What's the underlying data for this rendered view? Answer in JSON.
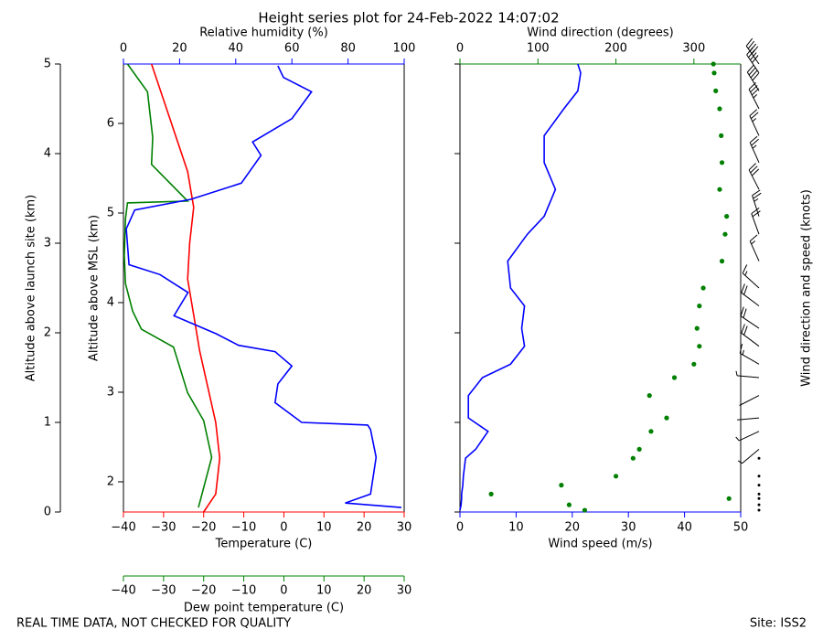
{
  "chart_data": [
    {
      "type": "line",
      "title": "Height series plot for 24-Feb-2022 14:07:02",
      "y_label": "Altitude above launch site (km)",
      "ylim": [
        0,
        5
      ],
      "yticks": [
        0,
        1,
        2,
        3,
        4,
        5
      ],
      "y2_label": "Altitude above MSL (km)",
      "y2lim": [
        1.663,
        6.663
      ],
      "y2ticks": [
        2,
        3,
        4,
        5,
        6
      ],
      "x_label": "Temperature (C)",
      "x_color": "red",
      "xlim": [
        -40,
        30
      ],
      "xticks": [
        {
          "value": -40,
          "label": "−40"
        },
        {
          "value": -30,
          "label": "−30"
        },
        {
          "value": -20,
          "label": "−20"
        },
        {
          "value": -10,
          "label": "−10"
        },
        0,
        10,
        20,
        30
      ],
      "x2_label": "Relative humidity (%)",
      "x2_color": "blue",
      "x2lim": [
        0,
        100
      ],
      "x2ticks": [
        0,
        20,
        40,
        60,
        80,
        100
      ],
      "x3_label": "Dew point temperature (C)",
      "x3_color": "green",
      "x3lim": [
        -40,
        30
      ],
      "x3ticks": [
        {
          "value": -40,
          "label": "−40"
        },
        {
          "value": -30,
          "label": "−30"
        },
        {
          "value": -20,
          "label": "−20"
        },
        {
          "value": -10,
          "label": "−10"
        },
        0,
        10,
        20,
        30
      ],
      "series": [
        {
          "axis": "x",
          "color": "red",
          "style": "line",
          "altitude": [
            0,
            0.2,
            0.6,
            1.0,
            1.4,
            1.8,
            2.2,
            2.6,
            3.0,
            3.4,
            3.8,
            4.2,
            4.6,
            5.0
          ],
          "values": [
            -20,
            -17,
            -16,
            -17,
            -19,
            -21,
            -22.5,
            -24,
            -23.5,
            -22.5,
            -24,
            -27,
            -30,
            -33
          ]
        },
        {
          "axis": "x3",
          "color": "green",
          "style": "line",
          "altitude": [
            0.05,
            0.61,
            1.02,
            1.33,
            1.84,
            2.04,
            2.24,
            2.55,
            2.86,
            3.27,
            3.45,
            3.47,
            3.88,
            4.18,
            4.69,
            5.0
          ],
          "values": [
            -21.3,
            -18,
            -20,
            -24,
            -27.5,
            -35.5,
            -37.7,
            -39.5,
            -39.8,
            -39.5,
            -39,
            -24,
            -33,
            -32.7,
            -34,
            -39
          ]
        },
        {
          "axis": "x2",
          "color": "blue",
          "style": "line",
          "altitude": [
            0.05,
            0.1,
            0.2,
            0.61,
            0.92,
            0.97,
            1.0,
            1.22,
            1.43,
            1.63,
            1.79,
            1.86,
            1.99,
            2.19,
            2.45,
            2.65,
            2.76,
            3.16,
            3.37,
            3.49,
            3.67,
            3.98,
            4.13,
            4.39,
            4.69,
            4.85,
            4.98
          ],
          "values": [
            99,
            79,
            88,
            90,
            88,
            87,
            63.5,
            54,
            55,
            60,
            54,
            41,
            33,
            18,
            23,
            13,
            2,
            1,
            4,
            24,
            42,
            49,
            46,
            60,
            67,
            57,
            55
          ]
        }
      ]
    },
    {
      "type": "line",
      "x_label": "Wind speed (m/s)",
      "x_color": "blue",
      "xlim": [
        0,
        50
      ],
      "xticks": [
        0,
        10,
        20,
        30,
        40,
        50
      ],
      "x2_label": "Wind direction (degrees)",
      "x2_color": "green",
      "x2lim": [
        0,
        360
      ],
      "x2ticks": [
        0,
        100,
        200,
        300
      ],
      "barb_label": "Wind direction and speed (knots)",
      "barbs": true,
      "altitude": [
        0.02,
        0.08,
        0.15,
        0.2,
        0.3,
        0.4,
        0.6,
        0.7,
        0.9,
        1.05,
        1.3,
        1.5,
        1.65,
        1.85,
        2.05,
        2.3,
        2.5,
        2.8,
        3.1,
        3.3,
        3.6,
        3.9,
        4.2,
        4.5,
        4.7,
        4.9,
        5.0
      ],
      "series": [
        {
          "axis": "x",
          "color": "blue",
          "style": "line",
          "values": [
            0,
            0.2,
            0.3,
            0.3,
            0.5,
            0.6,
            1,
            2.8,
            5,
            1.5,
            1.5,
            4,
            9,
            11.5,
            11,
            11.5,
            9,
            8.5,
            12,
            15,
            17,
            15,
            15,
            18.5,
            21,
            21.5,
            21
          ]
        },
        {
          "axis": "x2",
          "color": "green",
          "style": "dots",
          "values": [
            160,
            140,
            345,
            40,
            130,
            200,
            222,
            230,
            245,
            265,
            243,
            275,
            300,
            307,
            304,
            307,
            312,
            336,
            340,
            342,
            333,
            336,
            335,
            333,
            328,
            326,
            325
          ]
        }
      ]
    }
  ],
  "footer": {
    "note": "REAL TIME DATA, NOT CHECKED FOR QUALITY",
    "site": "Site: ISS2"
  }
}
